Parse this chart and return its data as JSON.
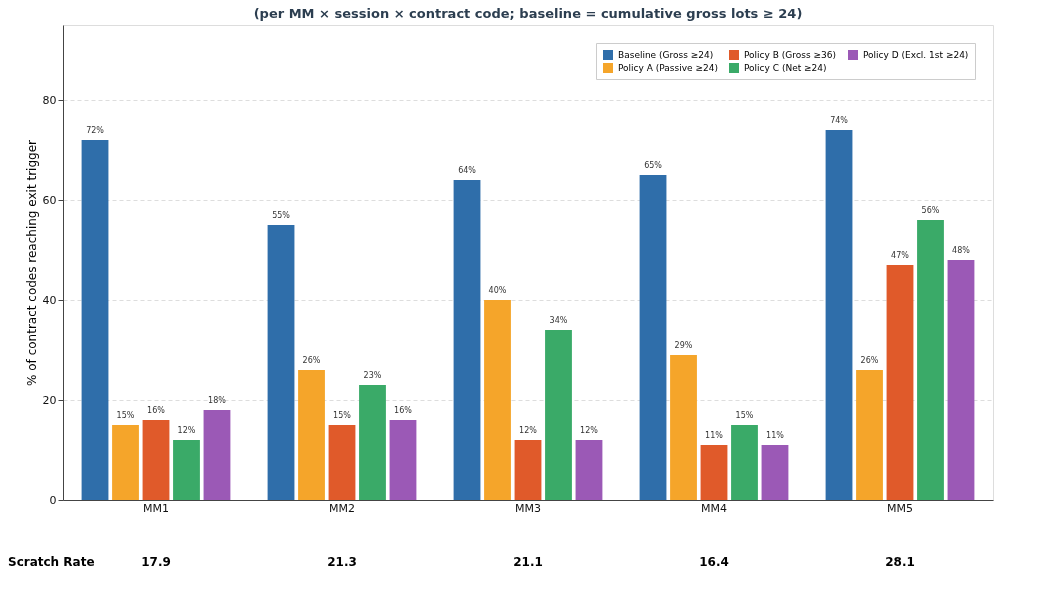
{
  "chart_data": {
    "type": "bar",
    "title": "(per MM × session × contract code; baseline = cumulative gross lots ≥ 24)",
    "ylabel": "% of contract codes reaching exit trigger",
    "categories": [
      "MM1",
      "MM2",
      "MM3",
      "MM4",
      "MM5"
    ],
    "series": [
      {
        "name": "Baseline (Gross ≥24)",
        "color": "#2f6eaa",
        "values": [
          72,
          55,
          64,
          65,
          74
        ],
        "value_labels": [
          "72%",
          "55%",
          "64%",
          "65%",
          "74%"
        ]
      },
      {
        "name": "Policy A (Passive ≥24)",
        "color": "#f5a52a",
        "values": [
          15,
          26,
          40,
          29,
          26
        ],
        "value_labels": [
          "15%",
          "26%",
          "40%",
          "29%",
          "26%"
        ]
      },
      {
        "name": "Policy B (Gross ≥36)",
        "color": "#e05a2a",
        "values": [
          16,
          15,
          12,
          11,
          47
        ],
        "value_labels": [
          "16%",
          "15%",
          "12%",
          "11%",
          "47%"
        ]
      },
      {
        "name": "Policy C (Net ≥24)",
        "color": "#3aaa68",
        "values": [
          12,
          23,
          34,
          15,
          56
        ],
        "value_labels": [
          "12%",
          "23%",
          "34%",
          "15%",
          "56%"
        ]
      },
      {
        "name": "Policy D (Excl. 1st ≥24)",
        "color": "#9b59b6",
        "values": [
          18,
          16,
          12,
          11,
          48
        ],
        "value_labels": [
          "18%",
          "16%",
          "12%",
          "11%",
          "48%"
        ]
      }
    ],
    "ylim": [
      0,
      95
    ],
    "yticks": [
      0,
      20,
      40,
      60,
      80
    ],
    "grid": "y",
    "legend": "top right",
    "annotations": [
      "Scratch Rate",
      "17.9",
      "21.3",
      "21.1",
      "16.4",
      "28.1"
    ]
  }
}
